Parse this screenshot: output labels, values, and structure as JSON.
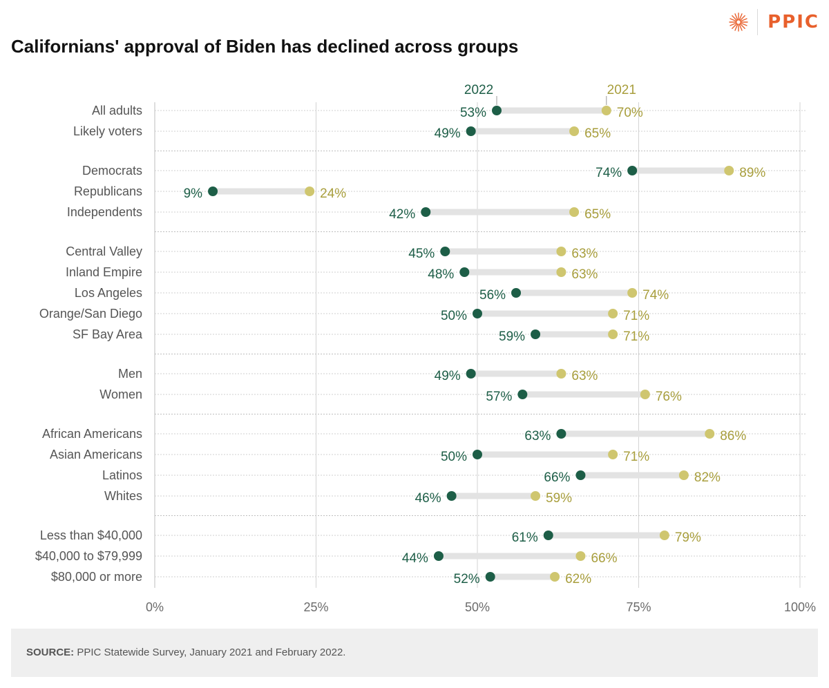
{
  "header": {
    "brand": "PPIC",
    "title": "Californians' approval of Biden has declined across groups"
  },
  "colors": {
    "series_2022": "#1d5e47",
    "series_2021": "#cfc66f",
    "label_2022": "#1d5e47",
    "label_2021": "#a89e3c",
    "connector": "#e3e3e3",
    "brand": "#e8602c"
  },
  "chart_data": {
    "type": "dumbbell",
    "title": "Californians' approval of Biden has declined across groups",
    "xlim": [
      0,
      100
    ],
    "x_ticks": [
      0,
      25,
      50,
      75,
      100
    ],
    "x_tick_labels": [
      "0%",
      "25%",
      "50%",
      "75%",
      "100%"
    ],
    "series": [
      {
        "name": "2022",
        "key": "v2022"
      },
      {
        "name": "2021",
        "key": "v2021"
      }
    ],
    "groups": [
      {
        "rows": [
          {
            "label": "All adults",
            "v2022": 53,
            "v2021": 70
          },
          {
            "label": "Likely voters",
            "v2022": 49,
            "v2021": 65
          }
        ]
      },
      {
        "rows": [
          {
            "label": "Democrats",
            "v2022": 74,
            "v2021": 89
          },
          {
            "label": "Republicans",
            "v2022": 9,
            "v2021": 24
          },
          {
            "label": "Independents",
            "v2022": 42,
            "v2021": 65
          }
        ]
      },
      {
        "rows": [
          {
            "label": "Central Valley",
            "v2022": 45,
            "v2021": 63
          },
          {
            "label": "Inland Empire",
            "v2022": 48,
            "v2021": 63
          },
          {
            "label": "Los Angeles",
            "v2022": 56,
            "v2021": 74
          },
          {
            "label": "Orange/San Diego",
            "v2022": 50,
            "v2021": 71
          },
          {
            "label": "SF Bay Area",
            "v2022": 59,
            "v2021": 71
          }
        ]
      },
      {
        "rows": [
          {
            "label": "Men",
            "v2022": 49,
            "v2021": 63
          },
          {
            "label": "Women",
            "v2022": 57,
            "v2021": 76
          }
        ]
      },
      {
        "rows": [
          {
            "label": "African Americans",
            "v2022": 63,
            "v2021": 86
          },
          {
            "label": "Asian Americans",
            "v2022": 50,
            "v2021": 71
          },
          {
            "label": "Latinos",
            "v2022": 66,
            "v2021": 82
          },
          {
            "label": "Whites",
            "v2022": 46,
            "v2021": 59
          }
        ]
      },
      {
        "rows": [
          {
            "label": "Less than $40,000",
            "v2022": 61,
            "v2021": 79
          },
          {
            "label": "$40,000 to $79,999",
            "v2022": 44,
            "v2021": 66
          },
          {
            "label": "$80,000 or more",
            "v2022": 52,
            "v2021": 62
          }
        ]
      }
    ]
  },
  "footer": {
    "source_label": "SOURCE:",
    "source_text": " PPIC Statewide Survey, January 2021 and February 2022."
  }
}
